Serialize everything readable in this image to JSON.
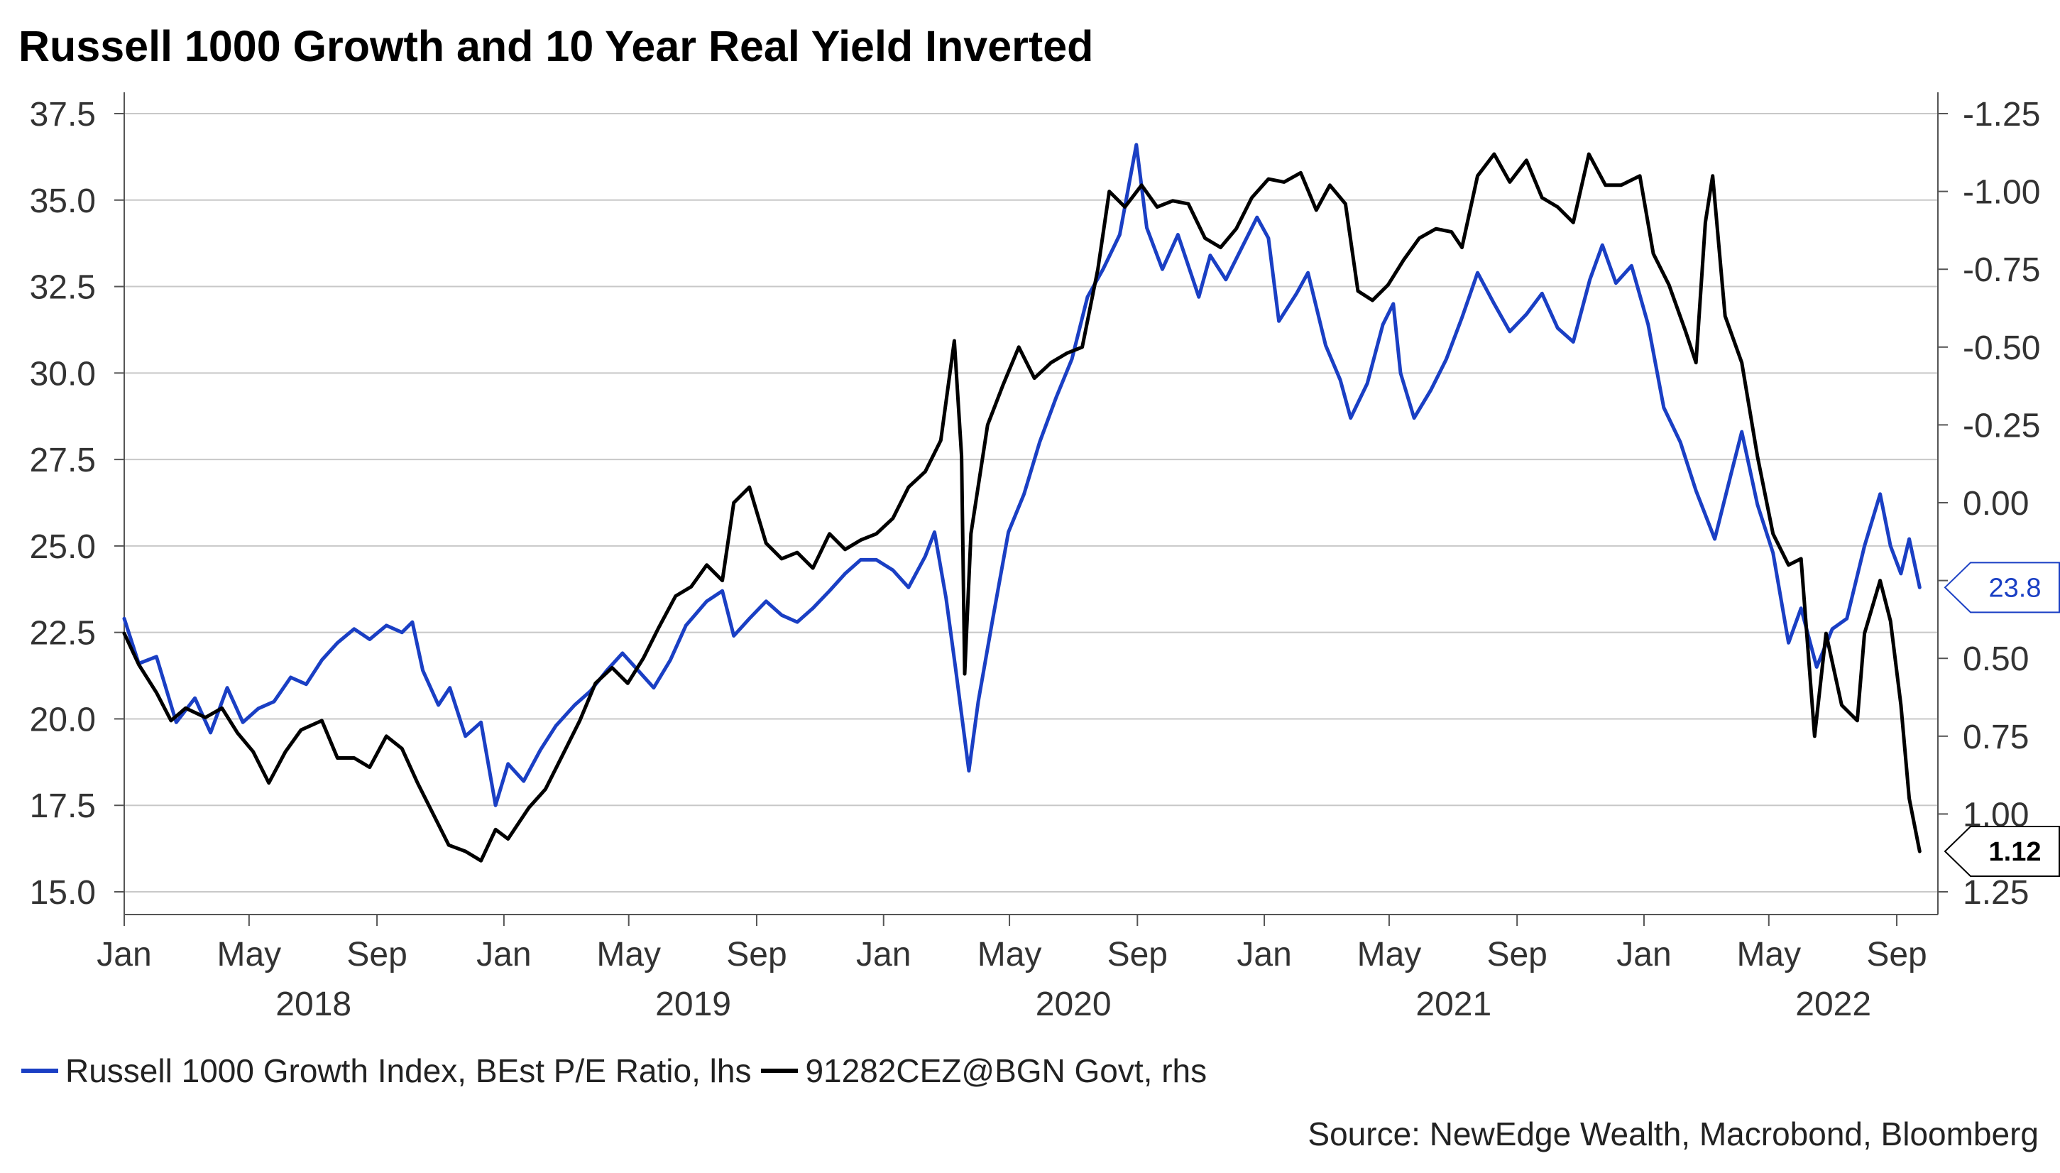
{
  "chart_data": {
    "type": "line",
    "title": "Russell 1000 Growth and 10 Year Real Yield Inverted",
    "left_axis": {
      "min": 15.0,
      "max": 37.5,
      "ticks": [
        "37.5",
        "35.0",
        "32.5",
        "30.0",
        "27.5",
        "25.0",
        "22.5",
        "20.0",
        "17.5",
        "15.0"
      ]
    },
    "right_axis": {
      "inverted": true,
      "min": -1.25,
      "max": 1.25,
      "ticks": [
        "-1.25",
        "-1.00",
        "-0.75",
        "-0.50",
        "-0.25",
        "0.00",
        "0.25",
        "0.50",
        "0.75",
        "1.00",
        "1.25"
      ]
    },
    "x_ticks": [
      "Jan",
      "May",
      "Sep",
      "Jan",
      "May",
      "Sep",
      "Jan",
      "May",
      "Sep",
      "Jan",
      "May",
      "Sep",
      "Jan",
      "May",
      "Sep"
    ],
    "x_years": [
      "2018",
      "2019",
      "2020",
      "2021",
      "2022"
    ],
    "grid": true,
    "legend_position": "bottom",
    "series": [
      {
        "name": "Russell 1000 Growth Index, BEst P/E Ratio, lhs",
        "axis": "left",
        "color": "#1a3fc4",
        "last_value_label": "23.8",
        "points": [
          [
            "2018-01-01",
            22.9
          ],
          [
            "2018-01-15",
            21.6
          ],
          [
            "2018-02-01",
            21.8
          ],
          [
            "2018-02-20",
            19.9
          ],
          [
            "2018-03-10",
            20.6
          ],
          [
            "2018-03-25",
            19.6
          ],
          [
            "2018-04-10",
            20.9
          ],
          [
            "2018-04-25",
            19.9
          ],
          [
            "2018-05-10",
            20.3
          ],
          [
            "2018-05-25",
            20.5
          ],
          [
            "2018-06-10",
            21.2
          ],
          [
            "2018-06-25",
            21.0
          ],
          [
            "2018-07-10",
            21.7
          ],
          [
            "2018-07-25",
            22.2
          ],
          [
            "2018-08-10",
            22.6
          ],
          [
            "2018-08-25",
            22.3
          ],
          [
            "2018-09-10",
            22.7
          ],
          [
            "2018-09-25",
            22.5
          ],
          [
            "2018-10-05",
            22.8
          ],
          [
            "2018-10-15",
            21.4
          ],
          [
            "2018-10-30",
            20.4
          ],
          [
            "2018-11-10",
            20.9
          ],
          [
            "2018-11-25",
            19.5
          ],
          [
            "2018-12-10",
            19.9
          ],
          [
            "2018-12-24",
            17.5
          ],
          [
            "2019-01-05",
            18.7
          ],
          [
            "2019-01-20",
            18.2
          ],
          [
            "2019-02-05",
            19.1
          ],
          [
            "2019-02-20",
            19.8
          ],
          [
            "2019-03-10",
            20.4
          ],
          [
            "2019-03-25",
            20.8
          ],
          [
            "2019-04-10",
            21.4
          ],
          [
            "2019-04-25",
            21.9
          ],
          [
            "2019-05-10",
            21.4
          ],
          [
            "2019-05-25",
            20.9
          ],
          [
            "2019-06-10",
            21.7
          ],
          [
            "2019-06-25",
            22.7
          ],
          [
            "2019-07-15",
            23.4
          ],
          [
            "2019-07-30",
            23.7
          ],
          [
            "2019-08-10",
            22.4
          ],
          [
            "2019-08-25",
            22.9
          ],
          [
            "2019-09-10",
            23.4
          ],
          [
            "2019-09-25",
            23.0
          ],
          [
            "2019-10-10",
            22.8
          ],
          [
            "2019-10-25",
            23.2
          ],
          [
            "2019-11-10",
            23.7
          ],
          [
            "2019-11-25",
            24.2
          ],
          [
            "2019-12-10",
            24.6
          ],
          [
            "2019-12-25",
            24.6
          ],
          [
            "2020-01-10",
            24.3
          ],
          [
            "2020-01-25",
            23.8
          ],
          [
            "2020-02-10",
            24.7
          ],
          [
            "2020-02-19",
            25.4
          ],
          [
            "2020-03-01",
            23.5
          ],
          [
            "2020-03-10",
            21.5
          ],
          [
            "2020-03-23",
            18.5
          ],
          [
            "2020-04-01",
            20.5
          ],
          [
            "2020-04-15",
            22.9
          ],
          [
            "2020-04-30",
            25.4
          ],
          [
            "2020-05-15",
            26.5
          ],
          [
            "2020-05-30",
            28.0
          ],
          [
            "2020-06-15",
            29.3
          ],
          [
            "2020-06-30",
            30.4
          ],
          [
            "2020-07-15",
            32.2
          ],
          [
            "2020-07-30",
            33.0
          ],
          [
            "2020-08-15",
            34.0
          ],
          [
            "2020-08-31",
            36.6
          ],
          [
            "2020-09-10",
            34.2
          ],
          [
            "2020-09-25",
            33.0
          ],
          [
            "2020-10-10",
            34.0
          ],
          [
            "2020-10-30",
            32.2
          ],
          [
            "2020-11-10",
            33.4
          ],
          [
            "2020-11-25",
            32.7
          ],
          [
            "2020-12-10",
            33.6
          ],
          [
            "2020-12-25",
            34.5
          ],
          [
            "2021-01-05",
            33.9
          ],
          [
            "2021-01-15",
            31.5
          ],
          [
            "2021-02-01",
            32.3
          ],
          [
            "2021-02-12",
            32.9
          ],
          [
            "2021-03-01",
            30.8
          ],
          [
            "2021-03-15",
            29.8
          ],
          [
            "2021-03-25",
            28.7
          ],
          [
            "2021-04-10",
            29.7
          ],
          [
            "2021-04-25",
            31.4
          ],
          [
            "2021-05-05",
            32.0
          ],
          [
            "2021-05-12",
            30.0
          ],
          [
            "2021-05-25",
            28.7
          ],
          [
            "2021-06-10",
            29.5
          ],
          [
            "2021-06-25",
            30.4
          ],
          [
            "2021-07-10",
            31.6
          ],
          [
            "2021-07-25",
            32.9
          ],
          [
            "2021-08-10",
            32.0
          ],
          [
            "2021-08-25",
            31.2
          ],
          [
            "2021-09-10",
            31.7
          ],
          [
            "2021-09-25",
            32.3
          ],
          [
            "2021-10-10",
            31.3
          ],
          [
            "2021-10-25",
            30.9
          ],
          [
            "2021-11-10",
            32.7
          ],
          [
            "2021-11-22",
            33.7
          ],
          [
            "2021-12-05",
            32.6
          ],
          [
            "2021-12-20",
            33.1
          ],
          [
            "2022-01-05",
            31.4
          ],
          [
            "2022-01-20",
            29.0
          ],
          [
            "2022-02-05",
            28.0
          ],
          [
            "2022-02-20",
            26.6
          ],
          [
            "2022-03-10",
            25.2
          ],
          [
            "2022-03-25",
            27.0
          ],
          [
            "2022-04-05",
            28.3
          ],
          [
            "2022-04-20",
            26.2
          ],
          [
            "2022-05-05",
            24.8
          ],
          [
            "2022-05-20",
            22.2
          ],
          [
            "2022-06-01",
            23.2
          ],
          [
            "2022-06-16",
            21.5
          ],
          [
            "2022-07-01",
            22.6
          ],
          [
            "2022-07-15",
            22.9
          ],
          [
            "2022-08-01",
            25.0
          ],
          [
            "2022-08-16",
            26.5
          ],
          [
            "2022-08-26",
            25.0
          ],
          [
            "2022-09-05",
            24.2
          ],
          [
            "2022-09-13",
            25.2
          ],
          [
            "2022-09-23",
            23.8
          ]
        ]
      },
      {
        "name": "91282CEZ@BGN  Govt, rhs",
        "axis": "right",
        "color": "#000000",
        "last_value_label": "1.12",
        "points": [
          [
            "2018-01-01",
            0.42
          ],
          [
            "2018-01-15",
            0.52
          ],
          [
            "2018-02-01",
            0.61
          ],
          [
            "2018-02-15",
            0.7
          ],
          [
            "2018-03-01",
            0.66
          ],
          [
            "2018-03-20",
            0.69
          ],
          [
            "2018-04-05",
            0.66
          ],
          [
            "2018-04-20",
            0.74
          ],
          [
            "2018-05-05",
            0.8
          ],
          [
            "2018-05-20",
            0.9
          ],
          [
            "2018-06-05",
            0.8
          ],
          [
            "2018-06-20",
            0.73
          ],
          [
            "2018-07-10",
            0.7
          ],
          [
            "2018-07-25",
            0.82
          ],
          [
            "2018-08-10",
            0.82
          ],
          [
            "2018-08-25",
            0.85
          ],
          [
            "2018-09-10",
            0.75
          ],
          [
            "2018-09-25",
            0.79
          ],
          [
            "2018-10-10",
            0.9
          ],
          [
            "2018-10-25",
            1.0
          ],
          [
            "2018-11-09",
            1.1
          ],
          [
            "2018-11-25",
            1.12
          ],
          [
            "2018-12-10",
            1.15
          ],
          [
            "2018-12-24",
            1.05
          ],
          [
            "2019-01-05",
            1.08
          ],
          [
            "2019-01-25",
            0.98
          ],
          [
            "2019-02-10",
            0.92
          ],
          [
            "2019-02-25",
            0.82
          ],
          [
            "2019-03-15",
            0.7
          ],
          [
            "2019-03-30",
            0.58
          ],
          [
            "2019-04-15",
            0.53
          ],
          [
            "2019-04-30",
            0.58
          ],
          [
            "2019-05-15",
            0.5
          ],
          [
            "2019-05-30",
            0.4
          ],
          [
            "2019-06-15",
            0.3
          ],
          [
            "2019-06-30",
            0.27
          ],
          [
            "2019-07-15",
            0.2
          ],
          [
            "2019-07-30",
            0.25
          ],
          [
            "2019-08-10",
            0.0
          ],
          [
            "2019-08-25",
            -0.05
          ],
          [
            "2019-09-10",
            0.13
          ],
          [
            "2019-09-25",
            0.18
          ],
          [
            "2019-10-10",
            0.16
          ],
          [
            "2019-10-25",
            0.21
          ],
          [
            "2019-11-10",
            0.1
          ],
          [
            "2019-11-25",
            0.15
          ],
          [
            "2019-12-10",
            0.12
          ],
          [
            "2019-12-25",
            0.1
          ],
          [
            "2020-01-10",
            0.05
          ],
          [
            "2020-01-25",
            -0.05
          ],
          [
            "2020-02-10",
            -0.1
          ],
          [
            "2020-02-25",
            -0.2
          ],
          [
            "2020-03-09",
            -0.52
          ],
          [
            "2020-03-16",
            -0.15
          ],
          [
            "2020-03-19",
            0.55
          ],
          [
            "2020-03-25",
            0.1
          ],
          [
            "2020-04-10",
            -0.25
          ],
          [
            "2020-04-25",
            -0.38
          ],
          [
            "2020-05-10",
            -0.5
          ],
          [
            "2020-05-25",
            -0.4
          ],
          [
            "2020-06-10",
            -0.45
          ],
          [
            "2020-06-25",
            -0.48
          ],
          [
            "2020-07-10",
            -0.5
          ],
          [
            "2020-07-25",
            -0.75
          ],
          [
            "2020-08-05",
            -1.0
          ],
          [
            "2020-08-20",
            -0.95
          ],
          [
            "2020-09-05",
            -1.02
          ],
          [
            "2020-09-20",
            -0.95
          ],
          [
            "2020-10-05",
            -0.97
          ],
          [
            "2020-10-20",
            -0.96
          ],
          [
            "2020-11-05",
            -0.85
          ],
          [
            "2020-11-20",
            -0.82
          ],
          [
            "2020-12-05",
            -0.88
          ],
          [
            "2020-12-20",
            -0.98
          ],
          [
            "2021-01-05",
            -1.04
          ],
          [
            "2021-01-20",
            -1.03
          ],
          [
            "2021-02-05",
            -1.06
          ],
          [
            "2021-02-20",
            -0.94
          ],
          [
            "2021-03-05",
            -1.02
          ],
          [
            "2021-03-20",
            -0.96
          ],
          [
            "2021-04-01",
            -0.68
          ],
          [
            "2021-04-15",
            -0.65
          ],
          [
            "2021-04-30",
            -0.7
          ],
          [
            "2021-05-15",
            -0.78
          ],
          [
            "2021-05-30",
            -0.85
          ],
          [
            "2021-06-15",
            -0.88
          ],
          [
            "2021-06-30",
            -0.87
          ],
          [
            "2021-07-10",
            -0.82
          ],
          [
            "2021-07-25",
            -1.05
          ],
          [
            "2021-08-10",
            -1.12
          ],
          [
            "2021-08-25",
            -1.03
          ],
          [
            "2021-09-10",
            -1.1
          ],
          [
            "2021-09-25",
            -0.98
          ],
          [
            "2021-10-10",
            -0.95
          ],
          [
            "2021-10-25",
            -0.9
          ],
          [
            "2021-11-09",
            -1.12
          ],
          [
            "2021-11-25",
            -1.02
          ],
          [
            "2021-12-10",
            -1.02
          ],
          [
            "2021-12-28",
            -1.05
          ],
          [
            "2022-01-10",
            -0.8
          ],
          [
            "2022-01-25",
            -0.7
          ],
          [
            "2022-02-10",
            -0.55
          ],
          [
            "2022-02-20",
            -0.45
          ],
          [
            "2022-03-01",
            -0.9
          ],
          [
            "2022-03-08",
            -1.05
          ],
          [
            "2022-03-20",
            -0.6
          ],
          [
            "2022-04-05",
            -0.45
          ],
          [
            "2022-04-20",
            -0.15
          ],
          [
            "2022-05-05",
            0.1
          ],
          [
            "2022-05-20",
            0.2
          ],
          [
            "2022-06-01",
            0.18
          ],
          [
            "2022-06-14",
            0.75
          ],
          [
            "2022-06-25",
            0.42
          ],
          [
            "2022-07-10",
            0.65
          ],
          [
            "2022-07-25",
            0.7
          ],
          [
            "2022-08-01",
            0.42
          ],
          [
            "2022-08-16",
            0.25
          ],
          [
            "2022-08-26",
            0.38
          ],
          [
            "2022-09-05",
            0.65
          ],
          [
            "2022-09-13",
            0.95
          ],
          [
            "2022-09-23",
            1.12
          ]
        ]
      }
    ]
  },
  "legend": {
    "items": [
      {
        "label": "Russell 1000 Growth Index, BEst P/E Ratio, lhs",
        "color": "#1a3fc4"
      },
      {
        "label": "91282CEZ@BGN  Govt, rhs",
        "color": "#000000"
      }
    ]
  },
  "source": "Source: NewEdge Wealth, Macrobond, Bloomberg"
}
